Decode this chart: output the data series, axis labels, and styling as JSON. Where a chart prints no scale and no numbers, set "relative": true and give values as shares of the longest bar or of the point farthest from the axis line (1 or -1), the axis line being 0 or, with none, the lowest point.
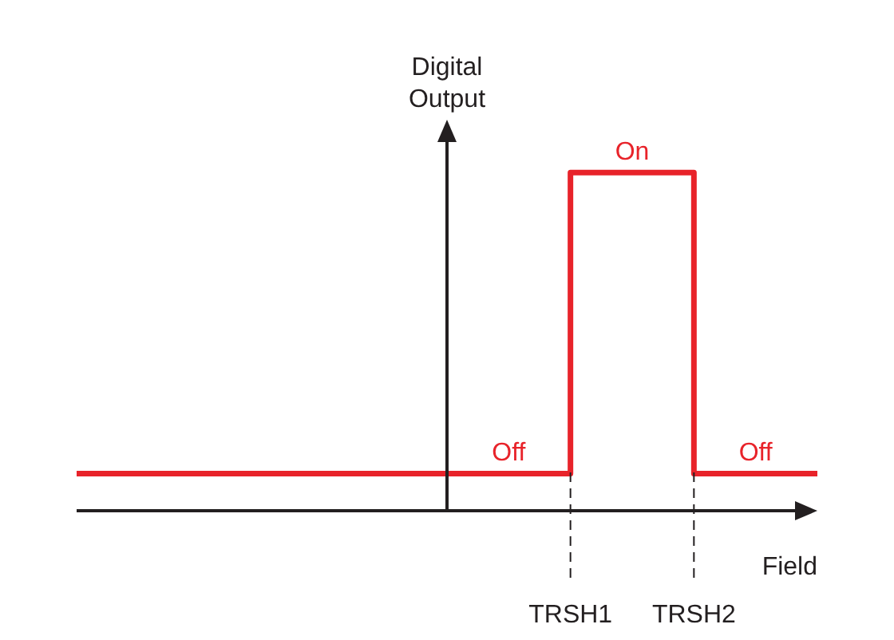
{
  "chart_data": {
    "type": "step",
    "relative": true,
    "xlabel": "Field",
    "ylabel": "Digital Output",
    "color": "#e8232a",
    "categories": [
      null,
      null,
      null,
      null,
      "TRSH1",
      "TRSH2",
      null
    ],
    "values": [
      0.11,
      0.11,
      0.11,
      0.11,
      1,
      0.11,
      0.11
    ],
    "annotations": [
      "Off",
      "On",
      "Off"
    ]
  }
}
